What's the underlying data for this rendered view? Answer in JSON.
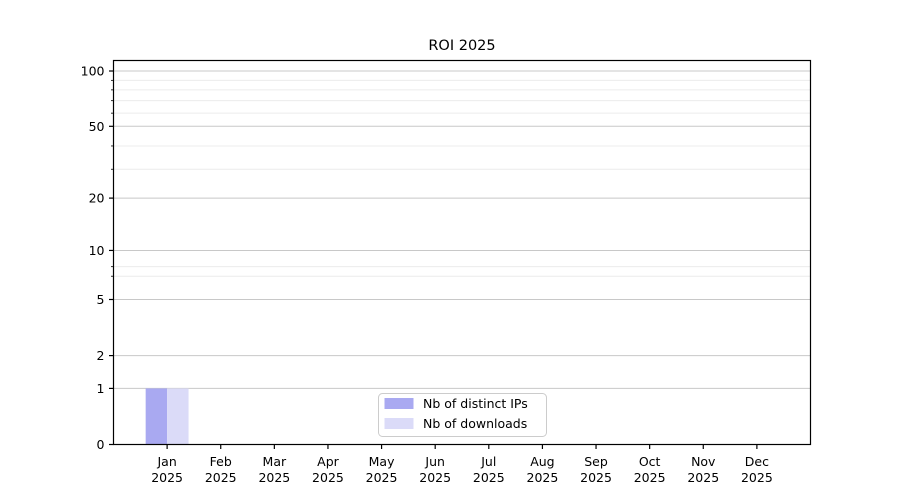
{
  "chart_data": {
    "type": "bar",
    "title": "ROI 2025",
    "categories": [
      "Jan",
      "Feb",
      "Mar",
      "Apr",
      "May",
      "Jun",
      "Jul",
      "Aug",
      "Sep",
      "Oct",
      "Nov",
      "Dec"
    ],
    "year": "2025",
    "series": [
      {
        "name": "Nb of distinct IPs",
        "color": "#a9a9f1",
        "values": [
          1,
          0,
          0,
          0,
          0,
          0,
          0,
          0,
          0,
          0,
          0,
          0
        ]
      },
      {
        "name": "Nb of downloads",
        "color": "#dbdbf8",
        "values": [
          1,
          0,
          0,
          0,
          0,
          0,
          0,
          0,
          0,
          0,
          0,
          0
        ]
      }
    ],
    "xlabel": "",
    "ylabel": "",
    "yscale": "log1p",
    "yticks": [
      0,
      1,
      2,
      5,
      10,
      20,
      50,
      100
    ],
    "ylim": [
      0,
      114
    ],
    "grid": {
      "major": true,
      "minor": true
    },
    "legend_position": "lower center"
  },
  "colors": {
    "background": "#ffffff",
    "axis": "#000000",
    "text": "#000000",
    "grid_major": "#c8c8c8",
    "grid_minor": "#ececec",
    "legend_border": "#cccccc",
    "legend_background": "#ffffff"
  }
}
